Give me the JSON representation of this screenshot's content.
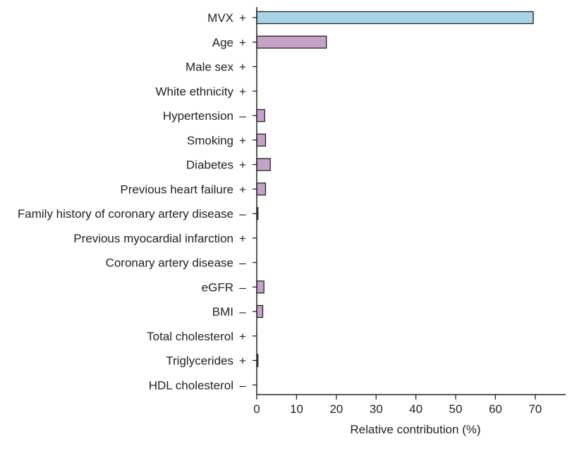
{
  "chart_data": {
    "type": "bar",
    "orientation": "horizontal",
    "xlabel": "Relative contribution (%)",
    "ylabel": "",
    "xlim": [
      0,
      77
    ],
    "xticks": [
      "0",
      "10",
      "20",
      "30",
      "40",
      "50",
      "60",
      "70"
    ],
    "grid": false,
    "categories": [
      "MVX",
      "Age",
      "Male sex",
      "White ethnicity",
      "Hypertension",
      "Smoking",
      "Diabetes",
      "Previous heart failure",
      "Family history of coronary artery disease",
      "Previous myocardial infarction",
      "Coronary artery disease",
      "eGFR",
      "BMI",
      "Total cholesterol",
      "Triglycerides",
      "HDL cholesterol"
    ],
    "signs": [
      "+",
      "+",
      "+",
      "+",
      "–",
      "+",
      "+",
      "+",
      "–",
      "+",
      "–",
      "–",
      "–",
      "+",
      "+",
      "–"
    ],
    "values": [
      69.5,
      17.5,
      0,
      0,
      2.0,
      2.2,
      3.4,
      2.2,
      0.3,
      0,
      0,
      1.8,
      1.5,
      0,
      0.3,
      0
    ],
    "bar_colors": [
      "#a8d4e6",
      "#c5a3c8",
      "#c5a3c8",
      "#c5a3c8",
      "#c5a3c8",
      "#c5a3c8",
      "#c5a3c8",
      "#c5a3c8",
      "#c5a3c8",
      "#c5a3c8",
      "#c5a3c8",
      "#c5a3c8",
      "#c5a3c8",
      "#c5a3c8",
      "#c5a3c8",
      "#c5a3c8"
    ]
  }
}
